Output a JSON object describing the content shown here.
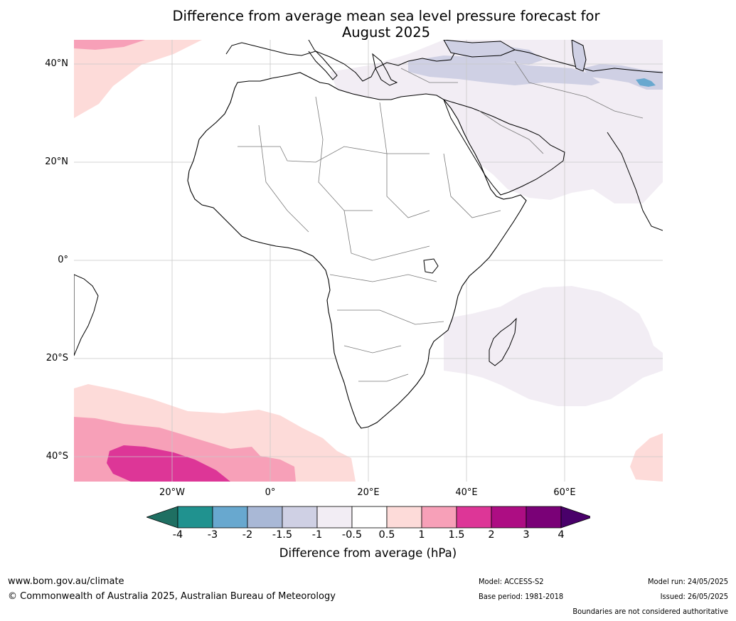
{
  "title_line1": "Difference from average mean sea level pressure forecast for",
  "title_line2": "August 2025",
  "lat_labels": [
    "40°N",
    "20°N",
    "0°",
    "20°S",
    "40°S"
  ],
  "lon_labels": [
    "20°W",
    "0°",
    "20°E",
    "40°E",
    "60°E"
  ],
  "colorbar": {
    "ticks": [
      "-4",
      "-3",
      "-2",
      "-1.5",
      "-1",
      "-0.5",
      "0.5",
      "1",
      "1.5",
      "2",
      "3",
      "4"
    ],
    "colors": [
      "#1f6f62",
      "#20928f",
      "#68a8cf",
      "#a9b8d6",
      "#cfd0e4",
      "#f2edf4",
      "#ffffff",
      "#fddbd9",
      "#f7a0b8",
      "#dd3697",
      "#ad0d83",
      "#7a0177",
      "#49006a"
    ],
    "label": "Difference from average (hPa)"
  },
  "footer": {
    "url": "www.bom.gov.au/climate",
    "copyright": "© Commonwealth of Australia 2025, Australian Bureau of Meteorology",
    "model": "Model: ACCESS-S2",
    "base_period": "Base period: 1981-2018",
    "model_run": "Model run: 24/05/2025",
    "issued": "Issued: 26/05/2025",
    "disclaimer": "Boundaries are not considered authoritative"
  }
}
